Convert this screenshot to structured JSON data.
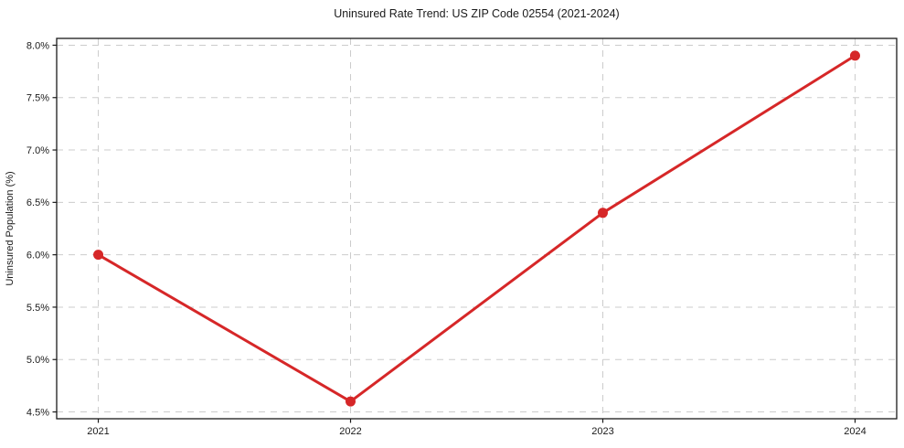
{
  "chart_data": {
    "type": "line",
    "title": "Uninsured Rate Trend: US ZIP Code 02554 (2021-2024)",
    "xlabel": "",
    "ylabel": "Uninsured Population (%)",
    "x": [
      2021,
      2022,
      2023,
      2024
    ],
    "x_tick_labels": [
      "2021",
      "2022",
      "2023",
      "2024"
    ],
    "series": [
      {
        "name": "uninsured-rate",
        "values": [
          6.0,
          4.6,
          6.4,
          7.9
        ]
      }
    ],
    "y_ticks": [
      4.5,
      5.0,
      5.5,
      6.0,
      6.5,
      7.0,
      7.5,
      8.0
    ],
    "y_tick_labels": [
      "4.5%",
      "5.0%",
      "5.5%",
      "6.0%",
      "6.5%",
      "7.0%",
      "7.5%",
      "8.0%"
    ],
    "xlim": [
      2020.835,
      2024.165
    ],
    "ylim": [
      4.435,
      8.065
    ],
    "grid": true,
    "grid_style": "dashed",
    "legend": "none",
    "colors": {
      "line": "#d62728",
      "marker": "#d62728",
      "grid": "#cccccc",
      "spine": "#1a1a1a",
      "text": "#1a1a1a",
      "background": "#ffffff"
    }
  }
}
